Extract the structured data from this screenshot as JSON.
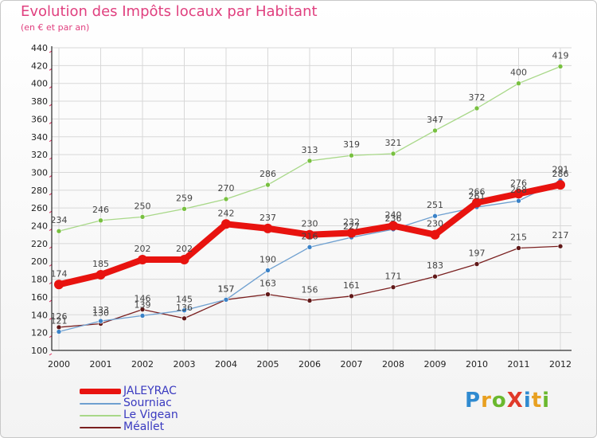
{
  "header": {
    "title": "Evolution des Impôts locaux par Habitant",
    "subtitle": "(en € et par an)"
  },
  "colors": {
    "title": "#e0407f",
    "axis": "#000000",
    "grid": "#d8d8d8",
    "tick_marks": "#e03060",
    "legend_text": "#3a3ac0"
  },
  "logo": {
    "text": "ProXiti",
    "letter_colors": [
      "#2f8ad0",
      "#e8a020",
      "#6ab82e",
      "#e03a2a",
      "#2f8ad0",
      "#e8a020",
      "#6ab82e"
    ]
  },
  "chart_data": {
    "type": "line",
    "title": "Evolution des Impôts locaux par Habitant",
    "subtitle": "(en € et par an)",
    "xlabel": "",
    "ylabel": "",
    "x": [
      "2000",
      "2001",
      "2002",
      "2003",
      "2004",
      "2005",
      "2006",
      "2007",
      "2008",
      "2009",
      "2010",
      "2011",
      "2012"
    ],
    "ylim": [
      100,
      440
    ],
    "yticks": [
      100,
      120,
      140,
      160,
      180,
      200,
      220,
      240,
      260,
      280,
      300,
      320,
      340,
      360,
      380,
      400,
      420,
      440
    ],
    "grid": true,
    "legend_position": "bottom-left",
    "series": [
      {
        "name": "JALEYRAC",
        "color": "#e8130f",
        "bold": true,
        "values": [
          174,
          185,
          202,
          202,
          242,
          237,
          230,
          232,
          240,
          230,
          266,
          276,
          286
        ],
        "labels": [
          "174",
          "185",
          "202",
          "202",
          "242",
          "237",
          "230",
          "232",
          "240",
          "230",
          "266",
          "276",
          "286"
        ]
      },
      {
        "name": "Sourniac",
        "color": "#6fa0d0",
        "marker": "#3a82c8",
        "values": [
          121,
          133,
          139,
          145,
          157,
          190,
          216,
          227,
          236,
          251,
          261,
          268,
          291
        ],
        "labels": [
          "121",
          "133",
          "139",
          "145",
          "157",
          "190",
          "216",
          "227",
          "236",
          "251",
          "261",
          "268",
          "291"
        ]
      },
      {
        "name": "Le Vigean",
        "color": "#a8d888",
        "marker": "#78c040",
        "values": [
          234,
          246,
          250,
          259,
          270,
          286,
          313,
          319,
          321,
          347,
          372,
          400,
          419
        ],
        "labels": [
          "234",
          "246",
          "250",
          "259",
          "270",
          "286",
          "313",
          "319",
          "321",
          "347",
          "372",
          "400",
          "419"
        ]
      },
      {
        "name": "Méallet",
        "color": "#7a2020",
        "marker": "#601818",
        "values": [
          126,
          130,
          146,
          136,
          157,
          163,
          156,
          161,
          171,
          183,
          197,
          215,
          217
        ],
        "labels": [
          "126",
          "130",
          "146",
          "136",
          "157",
          "163",
          "156",
          "161",
          "171",
          "183",
          "197",
          "215",
          "217"
        ]
      }
    ]
  }
}
